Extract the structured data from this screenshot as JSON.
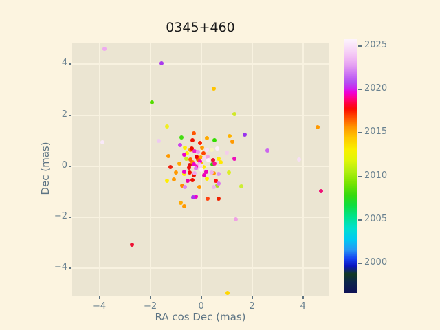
{
  "colors": {
    "figure_background": "#fcf4e0",
    "axes_background": "#ebe5d2",
    "gridline": "#f8f2e0",
    "tick_label": "#68808f",
    "axis_label": "#5d7484",
    "title": "#1b1b1b"
  },
  "chart_data": {
    "type": "scatter",
    "title": "0345+460",
    "xlabel": "RA cos Dec (mas)",
    "ylabel": "Dec (mas)",
    "grid": true,
    "xlim": [
      -5.07,
      5.01
    ],
    "ylim": [
      -5.09,
      4.85
    ],
    "x_ticks": {
      "values": [
        -4,
        -2,
        0,
        2,
        4
      ],
      "labels": [
        "−4",
        "−2",
        "0",
        "2",
        "4"
      ]
    },
    "y_ticks": {
      "values": [
        4,
        2,
        0,
        -2,
        -4
      ],
      "labels": [
        "4",
        "2",
        "0",
        "−2",
        "−4"
      ]
    },
    "marker_size_px": 6,
    "colorbar": {
      "tick_values": [
        2025,
        2020,
        2015,
        2010,
        2005,
        2000
      ],
      "tick_labels": [
        "2025",
        "2020",
        "2015",
        "2010",
        "2005",
        "2000"
      ],
      "value_top": 2025.8,
      "value_bottom": 1996.6,
      "gradient_stops": [
        {
          "f": 0.0,
          "c": "#fdf4fd"
        },
        {
          "f": 0.03,
          "c": "#f9e0f8"
        },
        {
          "f": 0.07,
          "c": "#f2bff4"
        },
        {
          "f": 0.105,
          "c": "#e49df2"
        },
        {
          "f": 0.14,
          "c": "#ca70f3"
        },
        {
          "f": 0.17,
          "c": "#b44ef2"
        },
        {
          "f": 0.195,
          "c": "#cd22ee"
        },
        {
          "f": 0.21,
          "c": "#ee00d4"
        },
        {
          "f": 0.23,
          "c": "#ff0090"
        },
        {
          "f": 0.255,
          "c": "#ff0038"
        },
        {
          "f": 0.275,
          "c": "#fb0a00"
        },
        {
          "f": 0.31,
          "c": "#ff5000"
        },
        {
          "f": 0.35,
          "c": "#ff9a00"
        },
        {
          "f": 0.39,
          "c": "#ffc900"
        },
        {
          "f": 0.435,
          "c": "#f9f000"
        },
        {
          "f": 0.475,
          "c": "#e2f607"
        },
        {
          "f": 0.52,
          "c": "#b2ee10"
        },
        {
          "f": 0.565,
          "c": "#7ce400"
        },
        {
          "f": 0.615,
          "c": "#35d90e"
        },
        {
          "f": 0.655,
          "c": "#0fdd3e"
        },
        {
          "f": 0.7,
          "c": "#00e38c"
        },
        {
          "f": 0.745,
          "c": "#00e0cf"
        },
        {
          "f": 0.79,
          "c": "#00c9f2"
        },
        {
          "f": 0.83,
          "c": "#2697f4"
        },
        {
          "f": 0.865,
          "c": "#1540f0"
        },
        {
          "f": 0.895,
          "c": "#0a14bc"
        },
        {
          "f": 0.925,
          "c": "#123a20"
        },
        {
          "f": 0.955,
          "c": "#0c2648"
        },
        {
          "f": 1.0,
          "c": "#0f1156"
        }
      ]
    },
    "points_format": [
      "x_mas",
      "y_mas",
      "color",
      "epoch_year"
    ],
    "points": [
      [
        -3.8,
        4.61,
        "#eeaaf0",
        2023
      ],
      [
        -1.56,
        4.04,
        "#aa3bee",
        2021
      ],
      [
        0.51,
        3.03,
        "#ffc400",
        2014
      ],
      [
        -1.94,
        2.5,
        "#55dd00",
        2008
      ],
      [
        1.31,
        2.03,
        "#d0e828",
        2011
      ],
      [
        -1.34,
        1.55,
        "#f0ee22",
        2012
      ],
      [
        4.58,
        1.53,
        "#ff9900",
        2015
      ],
      [
        1.7,
        1.22,
        "#9933ee",
        2021
      ],
      [
        2.6,
        0.6,
        "#cc66ee",
        2022
      ],
      [
        3.85,
        0.26,
        "#f6def4",
        2025
      ],
      [
        4.7,
        -0.99,
        "#ee1177",
        2019
      ],
      [
        -2.72,
        -3.1,
        "#ee1133",
        2018
      ],
      [
        1.37,
        -2.09,
        "#eea0e4",
        2023
      ],
      [
        1.05,
        -4.97,
        "#ffd700",
        2013
      ],
      [
        -3.89,
        0.93,
        "#f9e9f9",
        2026
      ],
      [
        -1.66,
        0.99,
        "#eec9f2",
        2024
      ],
      [
        -0.78,
        1.13,
        "#44dd11",
        2008
      ],
      [
        -0.28,
        1.28,
        "#ff5500",
        2016
      ],
      [
        -0.35,
        1.02,
        "#ee1100",
        2018
      ],
      [
        -0.84,
        0.83,
        "#cc44ee",
        2021
      ],
      [
        -0.04,
        0.91,
        "#ff2200",
        2017
      ],
      [
        -0.43,
        0.64,
        "#ff9900",
        2015
      ],
      [
        -0.56,
        0.51,
        "#ffee00",
        2013
      ],
      [
        -0.26,
        0.59,
        "#ee22cc",
        2020
      ],
      [
        -0.12,
        0.55,
        "#ee99ee",
        2023
      ],
      [
        -1.28,
        0.38,
        "#ff9900",
        2015
      ],
      [
        -0.17,
        0.36,
        "#ee0000",
        2018
      ],
      [
        0.1,
        0.5,
        "#ff4400",
        2016
      ],
      [
        -0.58,
        0.28,
        "#ccee22",
        2011
      ],
      [
        -0.86,
        0.09,
        "#ffaa00",
        2015
      ],
      [
        -1.21,
        -0.04,
        "#ee2211",
        2017
      ],
      [
        -0.44,
        0.05,
        "#dd1111",
        2018
      ],
      [
        -0.05,
        0.17,
        "#ff00bb",
        2019
      ],
      [
        0.02,
        0.02,
        "#f7d9f0",
        2025
      ],
      [
        0.22,
        1.09,
        "#ffaa00",
        2015
      ],
      [
        0.52,
        1.02,
        "#33dd00",
        2008
      ],
      [
        1.11,
        1.18,
        "#ffb300",
        2014
      ],
      [
        1.24,
        0.95,
        "#ff9900",
        2015
      ],
      [
        0.41,
        0.64,
        "#f6f2c0",
        2013
      ],
      [
        1.0,
        0.52,
        "#f4cdeb",
        2024
      ],
      [
        1.31,
        0.29,
        "#ee11bb",
        2019
      ],
      [
        0.68,
        0.28,
        "#ffee00",
        2013
      ],
      [
        0.46,
        0.23,
        "#ee1133",
        2018
      ],
      [
        0.52,
        0.09,
        "#ff1199",
        2019
      ],
      [
        0.43,
        0.06,
        "#33cc11",
        2007
      ],
      [
        0.76,
        0.16,
        "#ffe800",
        2013
      ],
      [
        0.25,
        0.36,
        "#f2a0e0",
        2023
      ],
      [
        -0.98,
        -0.25,
        "#ff9900",
        2015
      ],
      [
        -0.67,
        -0.22,
        "#ee00cc",
        2020
      ],
      [
        -0.44,
        -0.25,
        "#ff1100",
        2017
      ],
      [
        -0.26,
        -0.28,
        "#f0a8ec",
        2023
      ],
      [
        -1.34,
        -0.58,
        "#ffee00",
        2012
      ],
      [
        -1.07,
        -0.52,
        "#ff9900",
        2015
      ],
      [
        -0.53,
        -0.58,
        "#ee00aa",
        2019
      ],
      [
        -0.33,
        -0.54,
        "#ee1100",
        2018
      ],
      [
        -0.65,
        -0.81,
        "#dd88ee",
        2022
      ],
      [
        -0.74,
        -0.76,
        "#ff8800",
        2015
      ],
      [
        -0.08,
        -0.82,
        "#ff9900",
        2015
      ],
      [
        -0.31,
        -1.24,
        "#aa33ee",
        2021
      ],
      [
        -0.2,
        -1.21,
        "#ee00cc",
        2020
      ],
      [
        -0.8,
        -1.44,
        "#ffaa00",
        2015
      ],
      [
        -0.66,
        -1.57,
        "#ff9900",
        2015
      ],
      [
        0.19,
        -0.22,
        "#ee00bb",
        2020
      ],
      [
        0.41,
        -0.25,
        "#f0b0e8",
        2024
      ],
      [
        0.68,
        -0.3,
        "#dd99ee",
        2022
      ],
      [
        1.09,
        -0.25,
        "#ddee22",
        2011
      ],
      [
        0.23,
        -0.49,
        "#ffee00",
        2013
      ],
      [
        0.58,
        -0.58,
        "#ff1111",
        2018
      ],
      [
        0.69,
        -0.7,
        "#dd77ee",
        2022
      ],
      [
        0.5,
        -0.82,
        "#e8b5ee",
        2024
      ],
      [
        0.63,
        -0.76,
        "#aadd22",
        2010
      ],
      [
        1.58,
        -0.79,
        "#ccee33",
        2011
      ],
      [
        0.25,
        -1.28,
        "#ff4411",
        2017
      ],
      [
        0.69,
        -1.28,
        "#ee2200",
        2017
      ],
      [
        -0.63,
        0.72,
        "#ffee00",
        2013
      ],
      [
        -0.36,
        0.68,
        "#ee1100",
        2018
      ],
      [
        0.04,
        0.72,
        "#ff9900",
        2015
      ],
      [
        0.22,
        0.64,
        "#f6ddf2",
        2025
      ],
      [
        0.62,
        0.69,
        "#fdeefa",
        2026
      ],
      [
        -0.66,
        0.44,
        "#ee00cc",
        2020
      ],
      [
        -0.42,
        0.25,
        "#ff6600",
        2016
      ],
      [
        -0.34,
        0.16,
        "#ff8800",
        2015
      ],
      [
        0.11,
        0.3,
        "#f6d7f2",
        2025
      ],
      [
        0.29,
        0.24,
        "#fdf0fa",
        2026
      ],
      [
        -0.28,
        0.06,
        "#ee00cc",
        2020
      ],
      [
        -0.07,
        0.08,
        "#f0b8ec",
        2024
      ],
      [
        0.1,
        -0.03,
        "#ffee00",
        2013
      ],
      [
        -0.48,
        -0.06,
        "#ee1111",
        2018
      ],
      [
        -0.21,
        -0.1,
        "#dd77ee",
        2022
      ],
      [
        0.02,
        -0.15,
        "#fdeefa",
        2026
      ],
      [
        -0.66,
        -0.3,
        "#ffee00",
        2013
      ],
      [
        -0.28,
        -0.36,
        "#ee1100",
        2018
      ],
      [
        0.13,
        -0.37,
        "#ee00bb",
        2020
      ],
      [
        0.51,
        -0.27,
        "#ff9900",
        2015
      ],
      [
        -0.15,
        -0.02,
        "#ff00aa",
        2019
      ],
      [
        -0.05,
        -0.05,
        "#f8c8f0",
        2024
      ],
      [
        0.0,
        0.1,
        "#ffc400",
        2014
      ],
      [
        -0.12,
        0.25,
        "#ff5500",
        2016
      ],
      [
        -0.02,
        0.35,
        "#ffaa00",
        2015
      ]
    ]
  }
}
